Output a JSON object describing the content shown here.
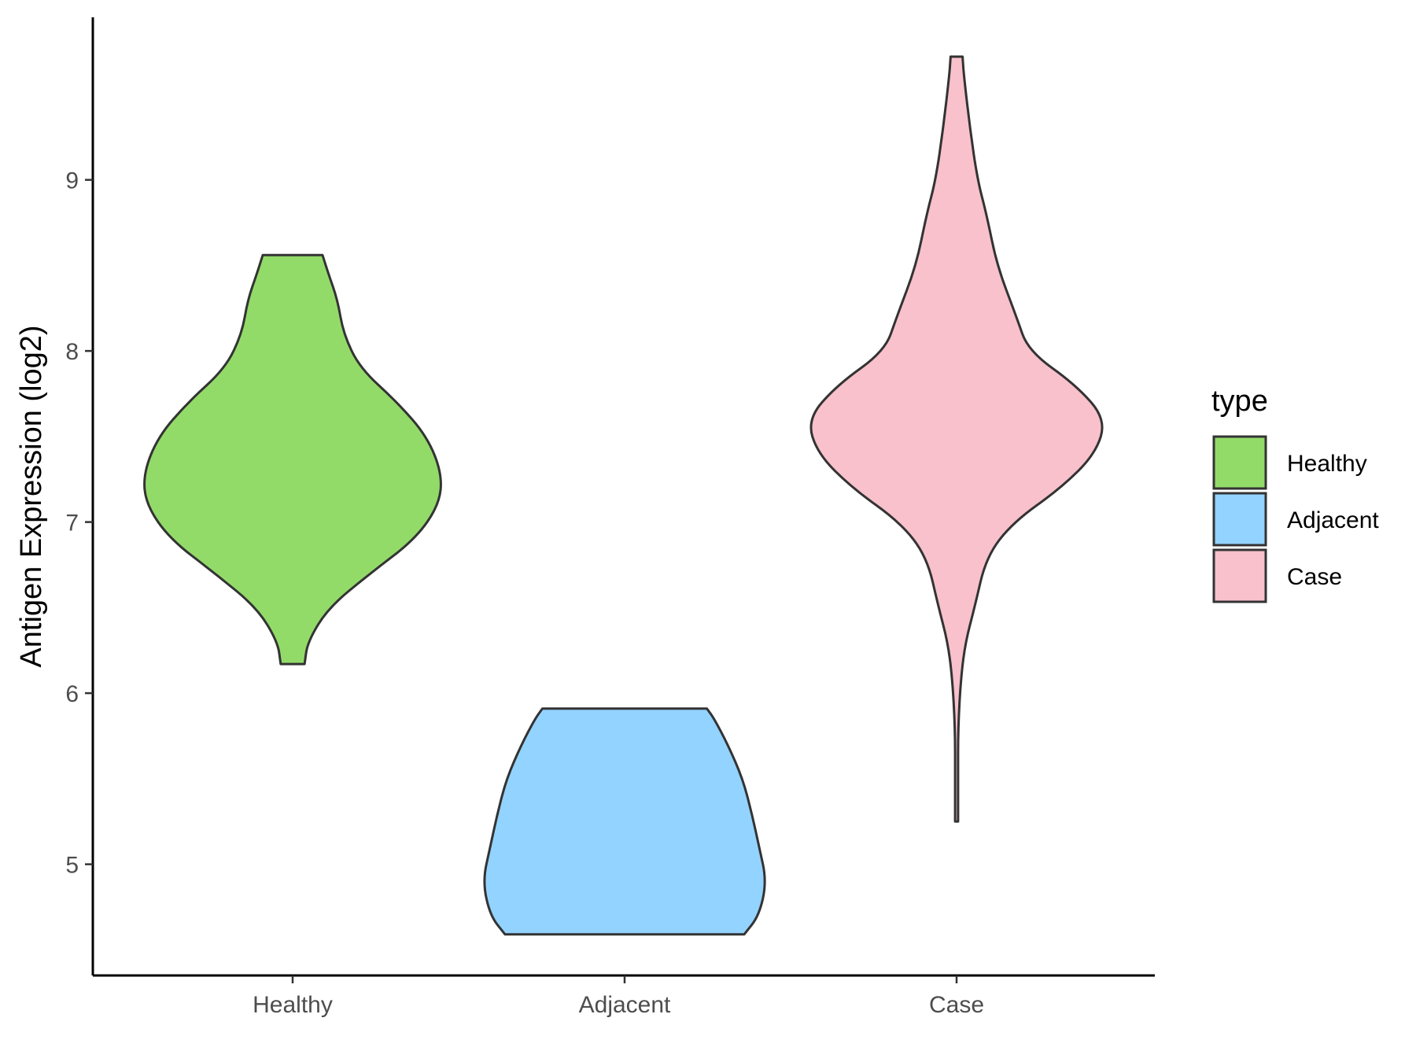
{
  "chart_data": {
    "type": "violin",
    "title": "",
    "xlabel": "",
    "ylabel": "Antigen Expression (log2)",
    "categories": [
      "Healthy",
      "Adjacent",
      "Case"
    ],
    "ylim": [
      4.35,
      9.95
    ],
    "yticks": [
      5,
      6,
      7,
      8,
      9
    ],
    "ytick_labels": [
      "5",
      "6",
      "7",
      "8",
      "9"
    ],
    "grid": false,
    "legend": {
      "title": "type",
      "position": "right",
      "entries": [
        "Healthy",
        "Adjacent",
        "Case"
      ]
    },
    "series": [
      {
        "category": "Healthy",
        "color": "#93db69",
        "min": 6.17,
        "max": 8.56,
        "density": [
          [
            6.17,
            0.08
          ],
          [
            6.3,
            0.1
          ],
          [
            6.5,
            0.24
          ],
          [
            6.7,
            0.52
          ],
          [
            6.9,
            0.82
          ],
          [
            7.1,
            0.98
          ],
          [
            7.28,
            1.0
          ],
          [
            7.5,
            0.9
          ],
          [
            7.7,
            0.7
          ],
          [
            7.9,
            0.45
          ],
          [
            8.1,
            0.34
          ],
          [
            8.3,
            0.3
          ],
          [
            8.45,
            0.24
          ],
          [
            8.56,
            0.2
          ]
        ]
      },
      {
        "category": "Adjacent",
        "color": "#93d3ff",
        "min": 4.59,
        "max": 5.91,
        "density": [
          [
            4.59,
            0.8
          ],
          [
            4.7,
            0.9
          ],
          [
            4.9,
            0.95
          ],
          [
            5.1,
            0.9
          ],
          [
            5.3,
            0.85
          ],
          [
            5.5,
            0.79
          ],
          [
            5.7,
            0.69
          ],
          [
            5.85,
            0.6
          ],
          [
            5.91,
            0.55
          ]
        ]
      },
      {
        "category": "Case",
        "color": "#f8c1cc",
        "min": 5.25,
        "max": 9.72,
        "density": [
          [
            5.25,
            0.01
          ],
          [
            5.5,
            0.01
          ],
          [
            5.8,
            0.01
          ],
          [
            6.1,
            0.03
          ],
          [
            6.3,
            0.06
          ],
          [
            6.5,
            0.12
          ],
          [
            6.8,
            0.2
          ],
          [
            7.0,
            0.38
          ],
          [
            7.2,
            0.7
          ],
          [
            7.4,
            0.93
          ],
          [
            7.6,
            1.0
          ],
          [
            7.8,
            0.8
          ],
          [
            8.0,
            0.48
          ],
          [
            8.2,
            0.4
          ],
          [
            8.5,
            0.27
          ],
          [
            8.8,
            0.2
          ],
          [
            9.0,
            0.14
          ],
          [
            9.3,
            0.09
          ],
          [
            9.6,
            0.05
          ],
          [
            9.72,
            0.04
          ]
        ]
      }
    ]
  }
}
